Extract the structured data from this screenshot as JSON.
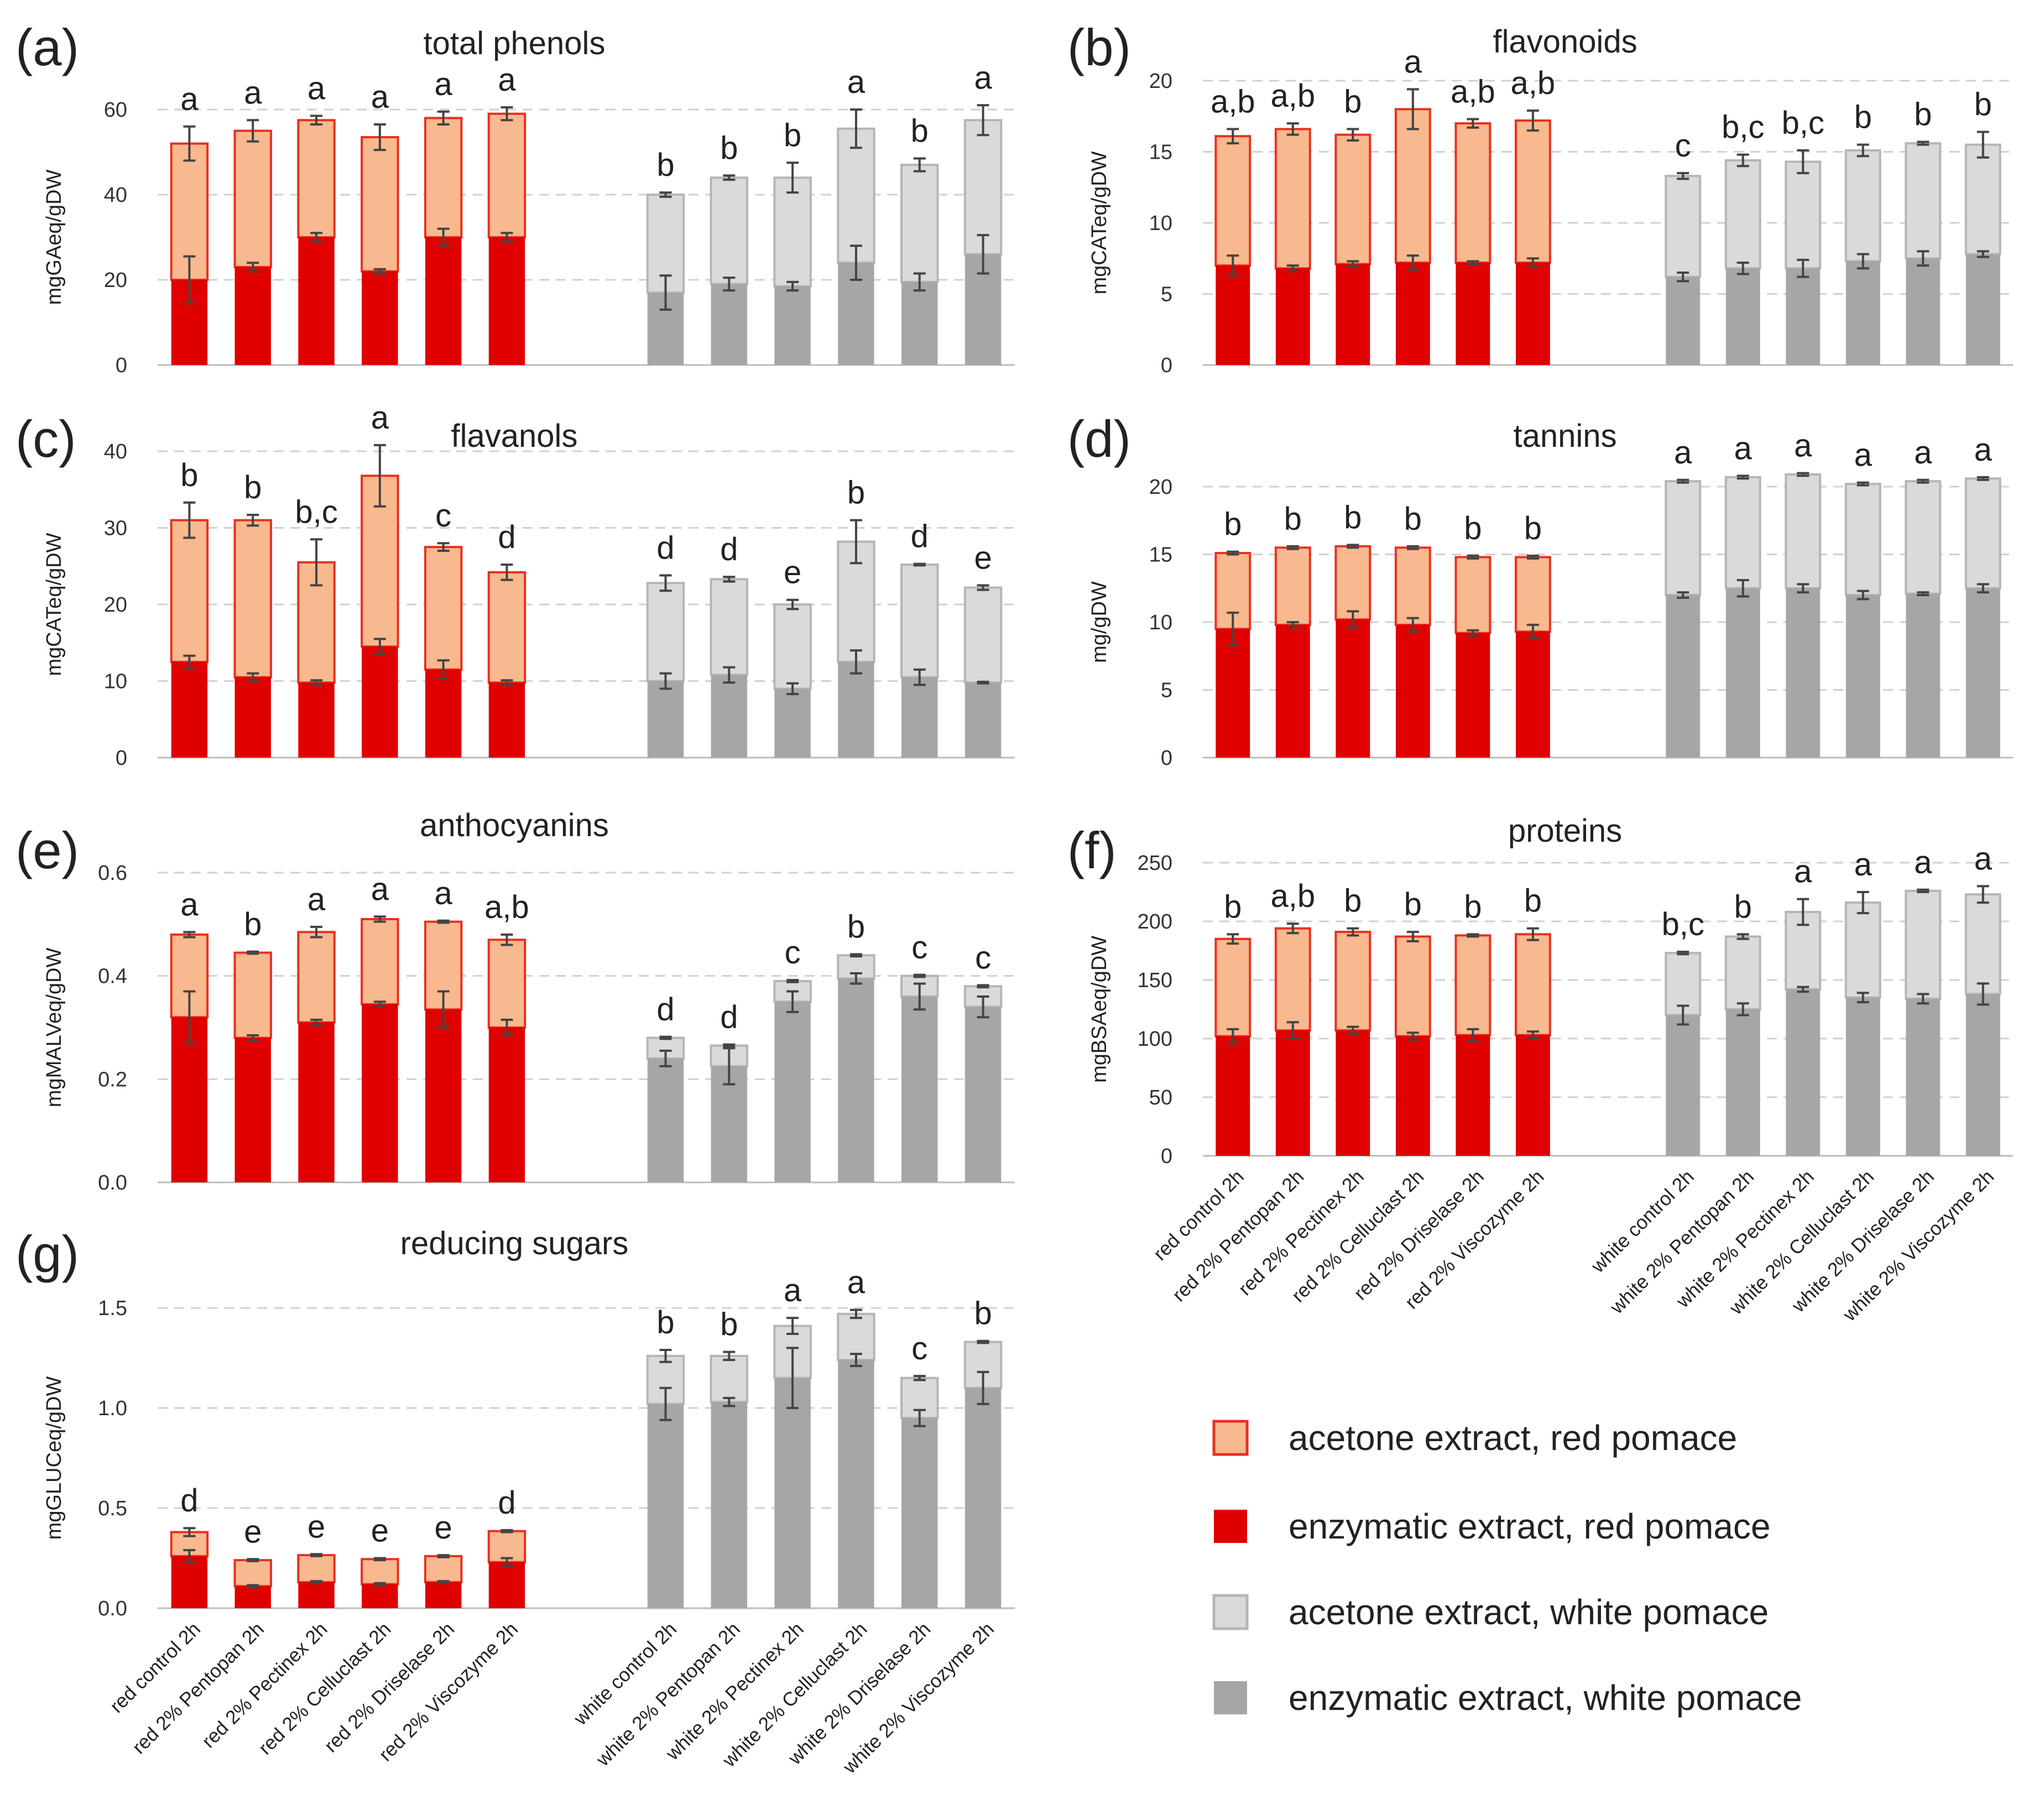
{
  "categories": [
    "red control 2h",
    "red 2% Pentopan 2h",
    "red 2% Pectinex 2h",
    "red 2% Celluclast 2h",
    "red 2% Driselase 2h",
    "red 2% Viscozyme 2h",
    "white control 2h",
    "white 2% Pentopan 2h",
    "white 2% Pectinex 2h",
    "white 2% Celluclast 2h",
    "white 2% Driselase 2h",
    "white 2% Viscozyme 2h"
  ],
  "colors": {
    "red_enzymatic": "#e00000",
    "red_acetone": "#f8b98e",
    "red_acetone_edge": "#e83020",
    "white_enzymatic": "#a6a6a6",
    "white_acetone": "#dadada",
    "white_acetone_edge": "#b5b5b5"
  },
  "legend": [
    {
      "label": "acetone extract, red pomace",
      "key": "red_acetone"
    },
    {
      "label": "enzymatic extract, red pomace",
      "key": "red_enzymatic"
    },
    {
      "label": "acetone extract, white pomace",
      "key": "white_acetone"
    },
    {
      "label": "enzymatic extract, white pomace",
      "key": "white_enzymatic"
    }
  ],
  "chart_data": [
    {
      "type": "bar",
      "stacked": true,
      "panel": "(a)",
      "title": "total phenols",
      "ylabel": "mgGAeq/gDW",
      "ylim": [
        0,
        60
      ],
      "yticks": [
        "0",
        "20",
        "40",
        "60"
      ],
      "show_categories": false,
      "series": [
        {
          "name": "enzymatic extract",
          "values": [
            20,
            23,
            30,
            22,
            30,
            30
          ],
          "errors": [
            5.5,
            1,
            1,
            0.5,
            2,
            1
          ]
        },
        {
          "name": "acetone extract",
          "totals": [
            52,
            55,
            57.5,
            53.5,
            58,
            59
          ],
          "errors": [
            4,
            2.5,
            1,
            3,
            1.5,
            1.5
          ]
        }
      ],
      "white_series": [
        {
          "name": "enzymatic extract",
          "values": [
            17,
            19,
            18.5,
            24,
            19.5,
            26
          ],
          "errors": [
            4,
            1.5,
            1,
            4,
            2,
            4.5
          ]
        },
        {
          "name": "acetone extract",
          "totals": [
            40,
            44,
            44,
            55.5,
            47,
            57.5
          ],
          "errors": [
            0.5,
            0.5,
            3.5,
            4.5,
            1.5,
            3.5
          ]
        }
      ],
      "letters": [
        "a",
        "a",
        "a",
        "a",
        "a",
        "a",
        "b",
        "b",
        "b",
        "a",
        "b",
        "a"
      ]
    },
    {
      "type": "bar",
      "stacked": true,
      "panel": "(b)",
      "title": "flavonoids",
      "ylabel": "mgCATeq/gDW",
      "ylim": [
        0,
        20
      ],
      "yticks": [
        "0",
        "5",
        "10",
        "15",
        "20"
      ],
      "show_categories": false,
      "series": [
        {
          "name": "enzymatic extract",
          "values": [
            7,
            6.8,
            7.1,
            7.2,
            7.2,
            7.2
          ],
          "errors": [
            0.7,
            0.2,
            0.2,
            0.5,
            0.1,
            0.3
          ]
        },
        {
          "name": "acetone extract",
          "totals": [
            16.1,
            16.6,
            16.2,
            18,
            17,
            17.2
          ],
          "errors": [
            0.5,
            0.4,
            0.4,
            1.4,
            0.3,
            0.7
          ]
        }
      ],
      "white_series": [
        {
          "name": "enzymatic extract",
          "values": [
            6.2,
            6.8,
            6.8,
            7.3,
            7.5,
            7.8
          ],
          "errors": [
            0.3,
            0.4,
            0.6,
            0.5,
            0.5,
            0.2
          ]
        },
        {
          "name": "acetone extract",
          "totals": [
            13.3,
            14.4,
            14.3,
            15.1,
            15.6,
            15.5
          ],
          "errors": [
            0.2,
            0.4,
            0.8,
            0.4,
            0.1,
            0.9
          ]
        }
      ],
      "letters": [
        "a,b",
        "a,b",
        "b",
        "a",
        "a,b",
        "a,b",
        "c",
        "b,c",
        "b,c",
        "b",
        "b",
        "b"
      ]
    },
    {
      "type": "bar",
      "stacked": true,
      "panel": "(c)",
      "title": "flavanols",
      "ylabel": "mgCATeq/gDW",
      "ylim": [
        0,
        40
      ],
      "yticks": [
        "0",
        "10",
        "20",
        "30",
        "40"
      ],
      "show_categories": false,
      "series": [
        {
          "name": "enzymatic extract",
          "values": [
            12.5,
            10.5,
            9.8,
            14.5,
            11.5,
            9.8
          ],
          "errors": [
            0.8,
            0.5,
            0.3,
            1,
            1.2,
            0.3
          ]
        },
        {
          "name": "acetone extract",
          "totals": [
            31,
            31,
            25.5,
            36.8,
            27.5,
            24.2
          ],
          "errors": [
            2.3,
            0.7,
            3,
            4,
            0.5,
            1
          ]
        }
      ],
      "white_series": [
        {
          "name": "enzymatic extract",
          "values": [
            10,
            10.8,
            9,
            12.5,
            10.5,
            9.8
          ],
          "errors": [
            1,
            1,
            0.7,
            1.5,
            1,
            0.1
          ]
        },
        {
          "name": "acetone extract",
          "totals": [
            22.8,
            23.3,
            20,
            28.2,
            25.2,
            22.2
          ],
          "errors": [
            1,
            0.3,
            0.6,
            2.8,
            0.1,
            0.3
          ]
        }
      ],
      "letters": [
        "b",
        "b",
        "b,c",
        "a",
        "c",
        "d",
        "d",
        "d",
        "e",
        "b",
        "d",
        "e"
      ]
    },
    {
      "type": "bar",
      "stacked": true,
      "panel": "(d)",
      "title": "tannins",
      "ylabel": "mg/gDW",
      "ylim": [
        0,
        20
      ],
      "yticks": [
        "0",
        "5",
        "10",
        "15",
        "20"
      ],
      "show_categories": false,
      "series": [
        {
          "name": "enzymatic extract",
          "values": [
            9.5,
            9.8,
            10.2,
            9.8,
            9.2,
            9.3
          ],
          "errors": [
            1.2,
            0.2,
            0.6,
            0.5,
            0.2,
            0.5
          ]
        },
        {
          "name": "acetone extract",
          "totals": [
            15.1,
            15.5,
            15.6,
            15.5,
            14.8,
            14.8
          ],
          "errors": [
            0.1,
            0.1,
            0.1,
            0.1,
            0.1,
            0.1
          ]
        }
      ],
      "white_series": [
        {
          "name": "enzymatic extract",
          "values": [
            12,
            12.5,
            12.5,
            12,
            12.1,
            12.5
          ],
          "errors": [
            0.2,
            0.6,
            0.3,
            0.3,
            0.1,
            0.3
          ]
        },
        {
          "name": "acetone extract",
          "totals": [
            20.4,
            20.7,
            20.9,
            20.2,
            20.4,
            20.6
          ],
          "errors": [
            0.1,
            0.1,
            0.1,
            0.1,
            0.1,
            0.1
          ]
        }
      ],
      "letters": [
        "b",
        "b",
        "b",
        "b",
        "b",
        "b",
        "a",
        "a",
        "a",
        "a",
        "a",
        "a"
      ]
    },
    {
      "type": "bar",
      "stacked": true,
      "panel": "(e)",
      "title": "anthocyanins",
      "ylabel": "mgMALVeq/gDW",
      "ylim": [
        0,
        0.6
      ],
      "yticks": [
        "0.0",
        "0.2",
        "0.4",
        "0.6"
      ],
      "show_categories": false,
      "series": [
        {
          "name": "enzymatic extract",
          "values": [
            0.32,
            0.28,
            0.31,
            0.345,
            0.335,
            0.3
          ],
          "errors": [
            0.05,
            0.005,
            0.005,
            0.005,
            0.035,
            0.015
          ]
        },
        {
          "name": "acetone extract",
          "totals": [
            0.48,
            0.445,
            0.485,
            0.51,
            0.505,
            0.47
          ],
          "errors": [
            0.005,
            0.002,
            0.01,
            0.005,
            0.002,
            0.01
          ]
        }
      ],
      "white_series": [
        {
          "name": "enzymatic extract",
          "values": [
            0.24,
            0.225,
            0.35,
            0.395,
            0.36,
            0.34
          ],
          "errors": [
            0.015,
            0.035,
            0.02,
            0.01,
            0.025,
            0.02
          ]
        },
        {
          "name": "acetone extract",
          "totals": [
            0.28,
            0.265,
            0.39,
            0.44,
            0.4,
            0.38
          ],
          "errors": [
            0.002,
            0.002,
            0.002,
            0.002,
            0.002,
            0.002
          ]
        }
      ],
      "letters": [
        "a",
        "b",
        "a",
        "a",
        "a",
        "a,b",
        "d",
        "d",
        "c",
        "b",
        "c",
        "c"
      ]
    },
    {
      "type": "bar",
      "stacked": true,
      "panel": "(f)",
      "title": "proteins",
      "ylabel": "mgBSAeq/gDW",
      "ylim": [
        0,
        250
      ],
      "yticks": [
        "0",
        "50",
        "100",
        "150",
        "200",
        "250"
      ],
      "show_categories": true,
      "series": [
        {
          "name": "enzymatic extract",
          "values": [
            102,
            107,
            107,
            102,
            103,
            103
          ],
          "errors": [
            6,
            7,
            3,
            3,
            5,
            3
          ]
        },
        {
          "name": "acetone extract",
          "totals": [
            185,
            194,
            191,
            187,
            188,
            189
          ],
          "errors": [
            4,
            4,
            3,
            4,
            1,
            5
          ]
        }
      ],
      "white_series": [
        {
          "name": "enzymatic extract",
          "values": [
            120,
            125,
            142,
            135,
            134,
            138
          ],
          "errors": [
            8,
            5,
            2,
            4,
            4,
            9
          ]
        },
        {
          "name": "acetone extract",
          "totals": [
            173,
            187,
            208,
            216,
            226,
            223
          ],
          "errors": [
            1,
            2,
            11,
            9,
            1,
            7
          ]
        }
      ],
      "letters": [
        "b",
        "a,b",
        "b",
        "b",
        "b",
        "b",
        "b,c",
        "b",
        "a",
        "a",
        "a",
        "a"
      ]
    },
    {
      "type": "bar",
      "stacked": true,
      "panel": "(g)",
      "title": "reducing sugars",
      "ylabel": "mgGLUCeq/gDW",
      "ylim": [
        0,
        1.5
      ],
      "yticks": [
        "0.0",
        "0.5",
        "1.0",
        "1.5"
      ],
      "show_categories": true,
      "series": [
        {
          "name": "enzymatic extract",
          "values": [
            0.26,
            0.11,
            0.13,
            0.12,
            0.13,
            0.23
          ],
          "errors": [
            0.03,
            0.005,
            0.005,
            0.005,
            0.005,
            0.02
          ]
        },
        {
          "name": "acetone extract",
          "totals": [
            0.38,
            0.24,
            0.265,
            0.245,
            0.26,
            0.385
          ],
          "errors": [
            0.02,
            0.005,
            0.005,
            0.005,
            0.005,
            0.005
          ]
        }
      ],
      "white_series": [
        {
          "name": "enzymatic extract",
          "values": [
            1.02,
            1.03,
            1.15,
            1.24,
            0.95,
            1.1
          ],
          "errors": [
            0.08,
            0.02,
            0.15,
            0.03,
            0.04,
            0.08
          ]
        },
        {
          "name": "acetone extract",
          "totals": [
            1.26,
            1.26,
            1.41,
            1.47,
            1.15,
            1.33
          ],
          "errors": [
            0.03,
            0.02,
            0.04,
            0.02,
            0.01,
            0.005
          ]
        }
      ],
      "letters": [
        "d",
        "e",
        "e",
        "e",
        "e",
        "d",
        "b",
        "b",
        "a",
        "a",
        "c",
        "b"
      ]
    }
  ]
}
